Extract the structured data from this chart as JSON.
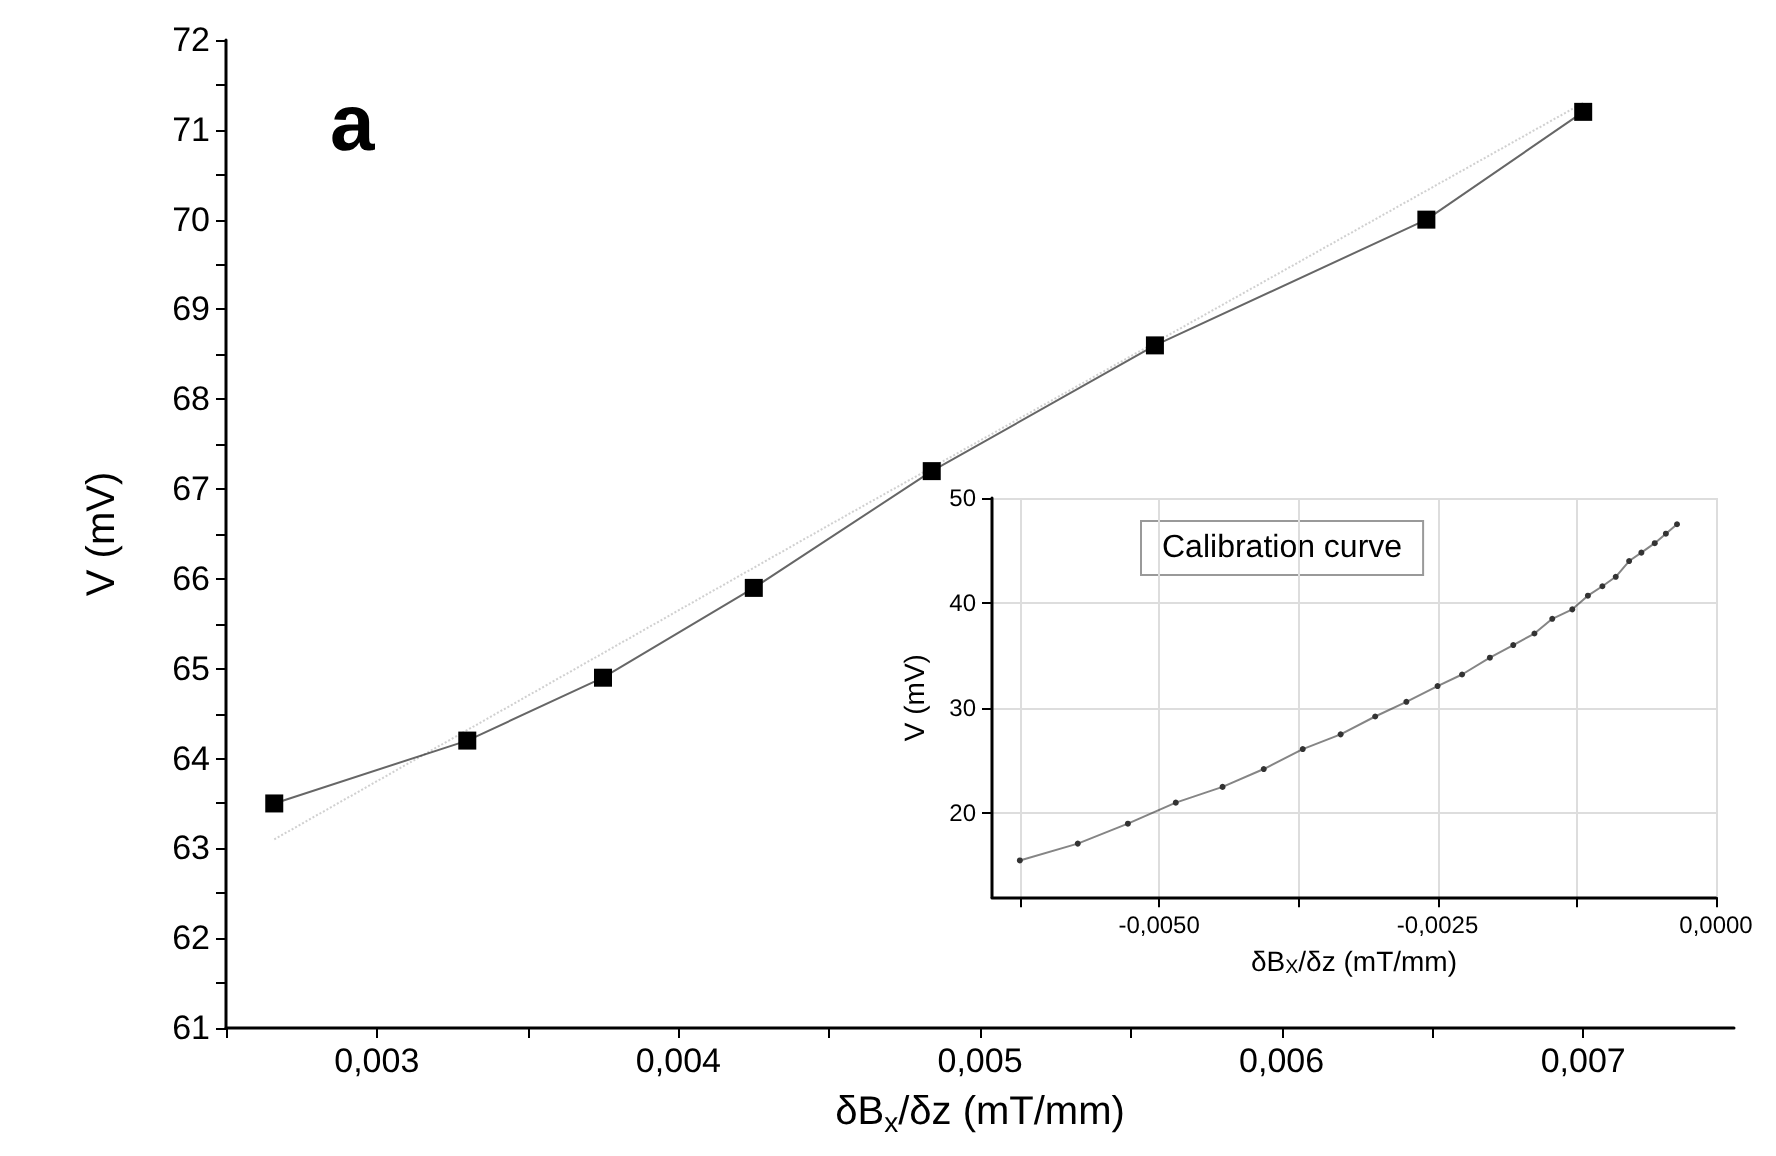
{
  "chart_data": [
    {
      "type": "line",
      "xlabel": "δB$_{x}$/δz (mT/mm)",
      "ylabel": "V (mV)",
      "annotations": [
        "a"
      ],
      "marker": "square",
      "grid": false,
      "xlim": [
        0.0025,
        0.0075
      ],
      "ylim": [
        61,
        72
      ],
      "xticks": [
        {
          "value": 0.0025,
          "label": null
        },
        {
          "value": 0.003,
          "label": "0,003"
        },
        {
          "value": 0.0035,
          "label": null
        },
        {
          "value": 0.004,
          "label": "0,004"
        },
        {
          "value": 0.0045,
          "label": null
        },
        {
          "value": 0.005,
          "label": "0,005"
        },
        {
          "value": 0.0055,
          "label": null
        },
        {
          "value": 0.006,
          "label": "0,006"
        },
        {
          "value": 0.0065,
          "label": null
        },
        {
          "value": 0.007,
          "label": "0,007"
        }
      ],
      "yticks": [
        61,
        {
          "value": 61.5,
          "label": null
        },
        62,
        {
          "value": 62.5,
          "label": null
        },
        63,
        {
          "value": 63.5,
          "label": null
        },
        64,
        {
          "value": 64.5,
          "label": null
        },
        65,
        {
          "value": 65.5,
          "label": null
        },
        66,
        {
          "value": 66.5,
          "label": null
        },
        67,
        {
          "value": 67.5,
          "label": null
        },
        68,
        {
          "value": 68.5,
          "label": null
        },
        69,
        {
          "value": 69.5,
          "label": null
        },
        70,
        {
          "value": 70.5,
          "label": null
        },
        71,
        {
          "value": 71.5,
          "label": null
        },
        72
      ],
      "series": [
        {
          "color": "#000000",
          "x": [
            0.00266,
            0.0033,
            0.00375,
            0.00425,
            0.00484,
            0.00558,
            0.00648,
            0.007
          ],
          "values": [
            63.5,
            64.2,
            64.9,
            65.9,
            67.2,
            68.6,
            70.0,
            71.2
          ]
        },
        {
          "color": "#b0b0b0",
          "marker": "none",
          "line_style": "dotted",
          "x": [
            0.00266,
            0.0045,
            0.007
          ],
          "values": [
            63.1,
            66.6,
            71.3
          ]
        }
      ]
    },
    {
      "type": "line",
      "xlabel": "δB$_{X}$/δz (mT/mm)",
      "ylabel": "V (mV)",
      "annotations": [
        "Calibration curve"
      ],
      "marker": "circle",
      "grid": true,
      "xlim": [
        -0.0065,
        0
      ],
      "ylim": [
        12,
        50
      ],
      "xticks": [
        {
          "value": -0.00625,
          "label": null
        },
        {
          "value": -0.005,
          "label": "-0,0050"
        },
        {
          "value": -0.00375,
          "label": null
        },
        {
          "value": -0.0025,
          "label": "-0,0025"
        },
        {
          "value": -0.00125,
          "label": null
        },
        {
          "value": 0,
          "label": "0,0000"
        }
      ],
      "yticks": [
        20,
        30,
        40,
        50
      ],
      "series": [
        {
          "color": "#333333",
          "x": [
            -0.00625,
            -0.00573,
            -0.00528,
            -0.00485,
            -0.00443,
            -0.00406,
            -0.00371,
            -0.00337,
            -0.00306,
            -0.00278,
            -0.0025,
            -0.00228,
            -0.00203,
            -0.00182,
            -0.00163,
            -0.00147,
            -0.00129,
            -0.00115,
            -0.00102,
            -0.0009,
            -0.00078,
            -0.00067,
            -0.00055,
            -0.00045,
            -0.00035
          ],
          "values": [
            15.5,
            17.1,
            19.0,
            21.0,
            22.5,
            24.2,
            26.1,
            27.5,
            29.2,
            30.6,
            32.1,
            33.2,
            34.8,
            36.0,
            37.1,
            38.5,
            39.4,
            40.7,
            41.6,
            42.5,
            44.0,
            44.8,
            45.7,
            46.6,
            47.5
          ]
        }
      ]
    }
  ]
}
